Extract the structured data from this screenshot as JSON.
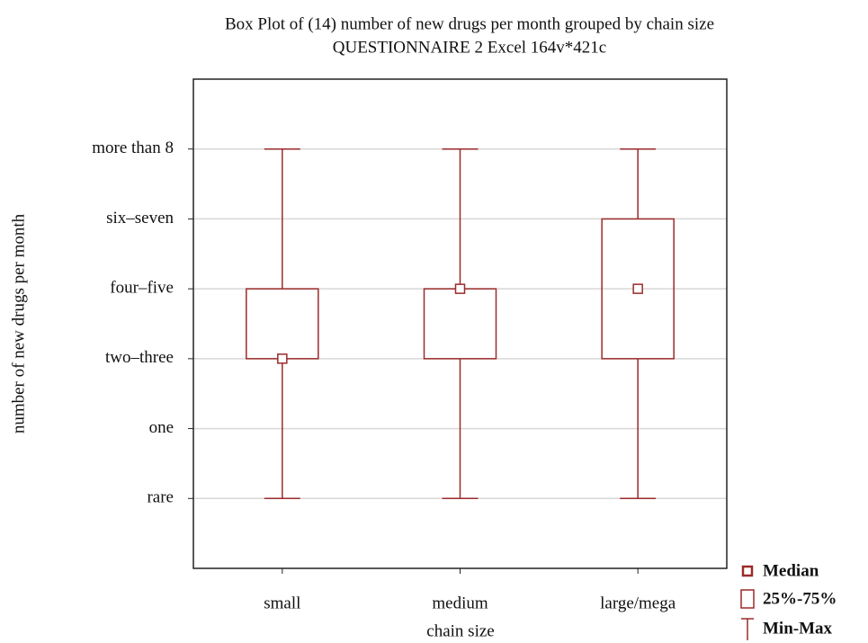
{
  "chart_data": {
    "type": "box",
    "title": "Box Plot of (14) number of new drugs per month grouped by chain size",
    "subtitle": "QUESTIONNAIRE 2 Excel 164v*421c",
    "x_label": "chain size",
    "y_label": "number of new drugs per month",
    "categories": [
      "small",
      "medium",
      "large/mega"
    ],
    "boxes": [
      {
        "min": 1,
        "q1": 3,
        "median": 3,
        "q3": 4,
        "max": 6
      },
      {
        "min": 1,
        "q1": 3,
        "median": 4,
        "q3": 4,
        "max": 6
      },
      {
        "min": 1,
        "q1": 3,
        "median": 4,
        "q3": 5,
        "max": 6
      }
    ],
    "color": "#9b2a2a",
    "ylim": [
      0,
      7
    ],
    "yticks": [
      {
        "value": 1,
        "label": "rare"
      },
      {
        "value": 2,
        "label": "one"
      },
      {
        "value": 3,
        "label": "two–three"
      },
      {
        "value": 4,
        "label": "four–five"
      },
      {
        "value": 5,
        "label": "six–seven"
      },
      {
        "value": 6,
        "label": "more than 8"
      }
    ],
    "grid": true,
    "legend": {
      "median": "Median",
      "box": "25%-75%",
      "whisker": "Min-Max"
    }
  }
}
